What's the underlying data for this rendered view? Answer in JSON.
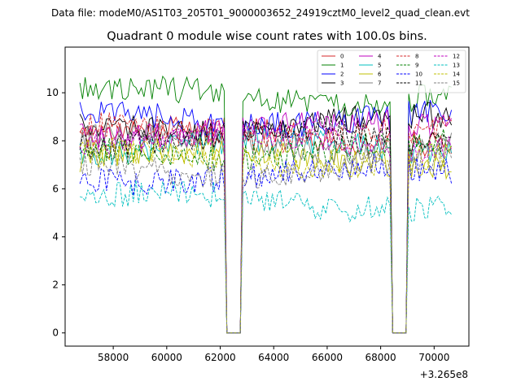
{
  "suptitle": "Data file: modeM0/AS1T03_205T01_9000003652_24919cztM0_level2_quad_clean.evt",
  "chart_data": {
    "type": "line",
    "title": "Quadrant 0 module wise count rates with 100.0s bins.",
    "xlabel": "",
    "ylabel": "",
    "x_offset_label": "+3.265e8",
    "x_offset": 326500000,
    "xlim": [
      56200,
      71300
    ],
    "ylim": [
      -0.55,
      11.9
    ],
    "x_ticks": [
      58000,
      60000,
      62000,
      64000,
      66000,
      68000,
      70000
    ],
    "x_tick_labels": [
      "58000",
      "60000",
      "62000",
      "64000",
      "66000",
      "68000",
      "70000"
    ],
    "y_ticks": [
      0,
      2,
      4,
      6,
      8,
      10
    ],
    "y_tick_labels": [
      "0",
      "2",
      "4",
      "6",
      "8",
      "10"
    ],
    "x_start": 56750,
    "bin": 100,
    "segments": [
      [
        56750,
        62150
      ],
      [
        62850,
        68350
      ],
      [
        69050,
        70650
      ]
    ],
    "gaps": [
      [
        62150,
        62850
      ],
      [
        68350,
        69050
      ]
    ],
    "legend_position": "top-right",
    "legend_columns": 4,
    "series": [
      {
        "name": "0",
        "mean": 8.2,
        "color": "#d62728",
        "dash": "solid"
      },
      {
        "name": "1",
        "mean": 9.9,
        "color": "#008000",
        "dash": "solid"
      },
      {
        "name": "2",
        "mean": 9.0,
        "color": "#0000ff",
        "dash": "solid"
      },
      {
        "name": "3",
        "mean": 8.7,
        "color": "#000000",
        "dash": "solid"
      },
      {
        "name": "4",
        "mean": 8.5,
        "color": "#bf00bf",
        "dash": "solid"
      },
      {
        "name": "5",
        "mean": 7.7,
        "color": "#00bfbf",
        "dash": "solid"
      },
      {
        "name": "6",
        "mean": 7.3,
        "color": "#bfbf00",
        "dash": "solid"
      },
      {
        "name": "7",
        "mean": 7.9,
        "color": "#7f7f7f",
        "dash": "solid"
      },
      {
        "name": "8",
        "mean": 8.4,
        "color": "#d62728",
        "dash": "dashed"
      },
      {
        "name": "9",
        "mean": 7.6,
        "color": "#008000",
        "dash": "dashed"
      },
      {
        "name": "10",
        "mean": 6.6,
        "color": "#0000ff",
        "dash": "dashed"
      },
      {
        "name": "11",
        "mean": 8.1,
        "color": "#000000",
        "dash": "dashed"
      },
      {
        "name": "12",
        "mean": 8.0,
        "color": "#bf00bf",
        "dash": "dashed"
      },
      {
        "name": "13",
        "mean": 5.5,
        "color": "#00bfbf",
        "dash": "dashed"
      },
      {
        "name": "14",
        "mean": 7.3,
        "color": "#bfbf00",
        "dash": "dashed"
      },
      {
        "name": "15",
        "mean": 6.9,
        "color": "#7f7f7f",
        "dash": "dashed"
      }
    ]
  }
}
